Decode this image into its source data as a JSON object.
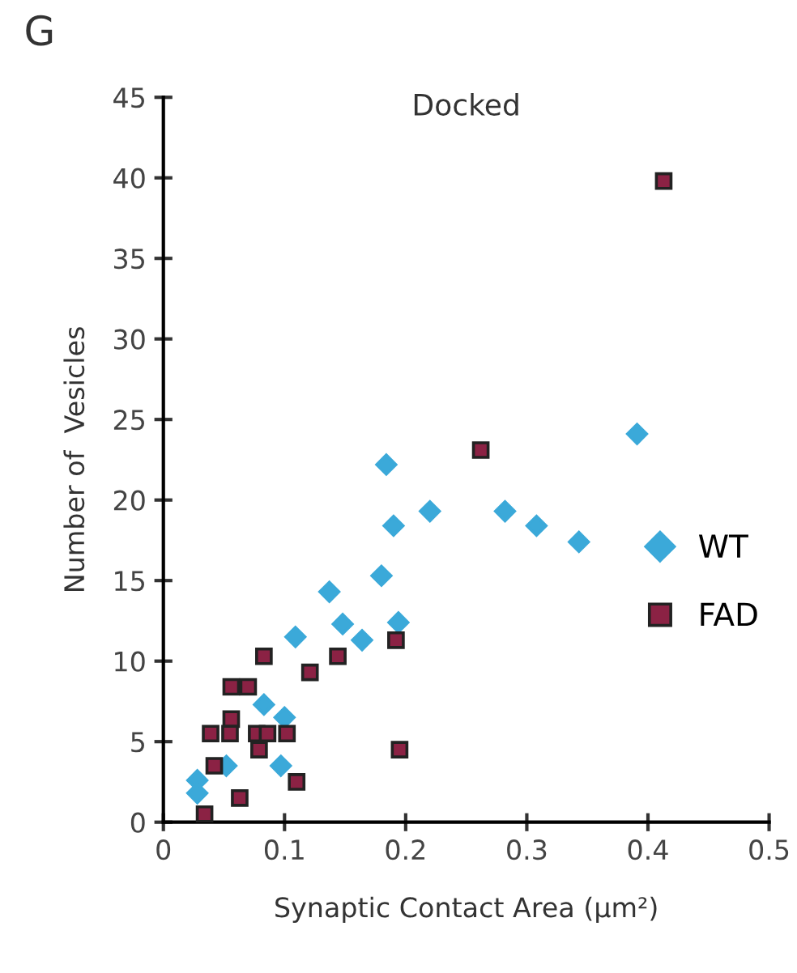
{
  "chart_data": {
    "type": "scatter",
    "title": "Docked",
    "xlabel": "Synaptic Contact Area (μm²)",
    "ylabel": "Number of  Vesicles",
    "annotations": [
      "G"
    ],
    "series": [
      {
        "name": "WT",
        "color": "#3ba9d9",
        "marker": "diamond",
        "x": [
          0.184,
          0.22,
          0.19,
          0.18,
          0.137,
          0.148,
          0.164,
          0.194,
          0.109,
          0.083,
          0.1,
          0.052,
          0.097,
          0.028,
          0.028,
          0.391,
          0.282,
          0.308,
          0.343
        ],
        "values": [
          22.2,
          19.3,
          18.4,
          15.3,
          14.3,
          12.3,
          11.3,
          12.4,
          11.5,
          7.3,
          6.5,
          3.5,
          3.5,
          2.6,
          1.8,
          24.1,
          19.3,
          18.4,
          17.4
        ]
      },
      {
        "name": "FAD",
        "color": "#8b2244",
        "marker": "square",
        "x": [
          0.083,
          0.121,
          0.144,
          0.192,
          0.056,
          0.07,
          0.056,
          0.039,
          0.055,
          0.077,
          0.086,
          0.102,
          0.079,
          0.195,
          0.042,
          0.11,
          0.063,
          0.034,
          0.262,
          0.413
        ],
        "values": [
          10.3,
          9.3,
          10.3,
          11.3,
          8.4,
          8.4,
          6.4,
          5.5,
          5.5,
          5.5,
          5.5,
          5.5,
          4.5,
          4.5,
          3.5,
          2.5,
          1.5,
          0.5,
          23.1,
          39.8
        ]
      }
    ],
    "xlim": [
      0,
      0.5
    ],
    "xticks": [
      0,
      0.1,
      0.2,
      0.3,
      0.4,
      0.5
    ],
    "ylim": [
      0,
      45
    ],
    "yticks": [
      0,
      5,
      10,
      15,
      20,
      25,
      30,
      35,
      40,
      45
    ],
    "grid": false,
    "legend": "right"
  }
}
